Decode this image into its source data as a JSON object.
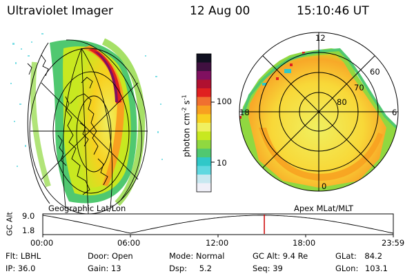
{
  "header": {
    "instrument": "Ultraviolet Imager",
    "date": "12 Aug 00",
    "time": "15:10:46 UT"
  },
  "colorbar": {
    "label": "photon cm^-2 s^-1",
    "label_main": "photon cm",
    "label_sup1": "-2",
    "label_mid": "s",
    "label_sup2": "-1",
    "ticks": [
      "100",
      "10"
    ],
    "colors": [
      "#f0f0f8",
      "#c8e8f0",
      "#60d8e0",
      "#30c8c8",
      "#50c870",
      "#90d840",
      "#c8e820",
      "#f0f060",
      "#f8d020",
      "#f8a020",
      "#f07030",
      "#e02020",
      "#b01030",
      "#801060",
      "#401040",
      "#101020"
    ]
  },
  "left_panel": {
    "caption": "Geographic Lat/Lon"
  },
  "right_panel": {
    "caption": "Apex MLat/MLT",
    "mlt_labels": [
      "12",
      "18",
      "6",
      "0"
    ],
    "lat_labels": [
      "60",
      "70",
      "80"
    ]
  },
  "timeline": {
    "ylabel": "GC Alt",
    "y_ticks": [
      "9.0",
      "1.8"
    ],
    "x_ticks": [
      "00:00",
      "06:00",
      "12:00",
      "18:00",
      "23:59"
    ],
    "marker_time_fraction": 0.632,
    "marker_color": "#cc0000"
  },
  "info": {
    "flt_label": "Flt:",
    "flt_value": "LBHL",
    "ip_label": "IP:",
    "ip_value": "36.0",
    "door_label": "Door:",
    "door_value": "Open",
    "gain_label": "Gain:",
    "gain_value": "13",
    "mode_label": "Mode:",
    "mode_value": "Normal",
    "dsp_label": "Dsp:",
    "dsp_value": "5.2",
    "gcalt_label": "GC Alt:",
    "gcalt_value": "9.4 Re",
    "seq_label": "Seq:",
    "seq_value": "39",
    "glat_label": "GLat:",
    "glat_value": "84.2",
    "glon_label": "GLon:",
    "glon_value": "103.1"
  }
}
